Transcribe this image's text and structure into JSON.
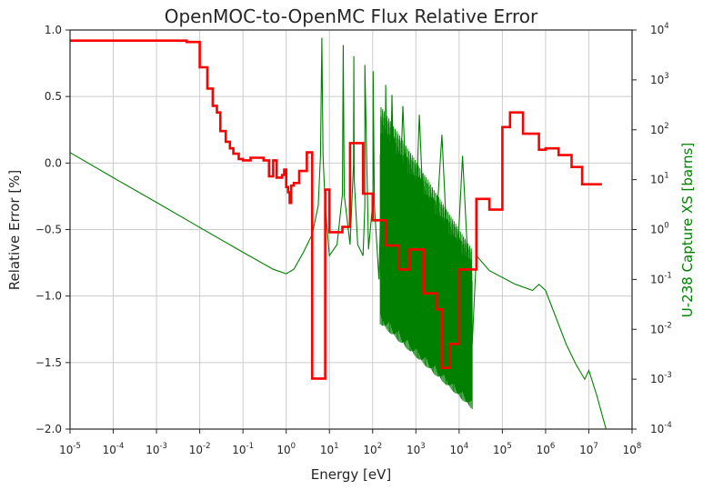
{
  "chart_data": {
    "type": "line",
    "title": "OpenMOC-to-OpenMC Flux Relative Error",
    "xlabel": "Energy [eV]",
    "ylabel": "Relative Error [%]",
    "y2label": "U-238 Capture XS [barns]",
    "x_scale": "log",
    "xlim": [
      1e-05,
      100000000.0
    ],
    "ylim": [
      -2.0,
      1.0
    ],
    "y2_scale": "log",
    "y2lim": [
      0.0001,
      10000.0
    ],
    "grid": true,
    "x_ticks": [
      {
        "base": "10",
        "exp": "-5"
      },
      {
        "base": "10",
        "exp": "-4"
      },
      {
        "base": "10",
        "exp": "-3"
      },
      {
        "base": "10",
        "exp": "-2"
      },
      {
        "base": "10",
        "exp": "-1"
      },
      {
        "base": "10",
        "exp": "0"
      },
      {
        "base": "10",
        "exp": "1"
      },
      {
        "base": "10",
        "exp": "2"
      },
      {
        "base": "10",
        "exp": "3"
      },
      {
        "base": "10",
        "exp": "4"
      },
      {
        "base": "10",
        "exp": "5"
      },
      {
        "base": "10",
        "exp": "6"
      },
      {
        "base": "10",
        "exp": "7"
      },
      {
        "base": "10",
        "exp": "8"
      }
    ],
    "y_ticks": [
      "1.0",
      "0.5",
      "0.0",
      "−0.5",
      "−1.0",
      "−1.5",
      "−2.0"
    ],
    "y2_ticks": [
      {
        "base": "10",
        "exp": "4"
      },
      {
        "base": "10",
        "exp": "3"
      },
      {
        "base": "10",
        "exp": "2"
      },
      {
        "base": "10",
        "exp": "1"
      },
      {
        "base": "10",
        "exp": "0"
      },
      {
        "base": "10",
        "exp": "-1"
      },
      {
        "base": "10",
        "exp": "-2"
      },
      {
        "base": "10",
        "exp": "-3"
      },
      {
        "base": "10",
        "exp": "-4"
      }
    ],
    "colors": {
      "error": "#ff0000",
      "xs": "#008000",
      "grid": "#cccccc",
      "axes": "#262626"
    },
    "series": [
      {
        "axis": "left",
        "step": true,
        "color": "#ff0000",
        "edges": [
          1e-05,
          0.005,
          0.01,
          0.015,
          0.02,
          0.025,
          0.03,
          0.04,
          0.05,
          0.06,
          0.08,
          0.1,
          0.15,
          0.3,
          0.4,
          0.5,
          0.6,
          0.8,
          0.9,
          1.0,
          1.1,
          1.2,
          1.3,
          1.5,
          2.0,
          3.0,
          4.0,
          4.5,
          8.0,
          10.0,
          20.0,
          30.0,
          60.0,
          100.0,
          200.0,
          400.0,
          700.0,
          1500.0,
          3000.0,
          4000.0,
          6000.0,
          10000.0,
          25000.0,
          50000.0,
          100000.0,
          150000.0,
          300000.0,
          700000.0,
          1000000.0,
          2000000.0,
          4000000.0,
          7000000.0,
          20000000.0
        ],
        "values": [
          0.92,
          0.91,
          0.72,
          0.56,
          0.43,
          0.38,
          0.24,
          0.16,
          0.11,
          0.07,
          0.03,
          0.02,
          0.04,
          0.02,
          -0.1,
          0.02,
          -0.11,
          -0.09,
          -0.05,
          -0.18,
          -0.22,
          -0.3,
          -0.17,
          -0.15,
          -0.06,
          0.08,
          -1.62,
          -1.62,
          -0.2,
          -0.52,
          -0.48,
          0.15,
          -0.23,
          -0.43,
          -0.62,
          -0.8,
          -0.65,
          -0.98,
          -1.1,
          -1.54,
          -1.36,
          -0.8,
          -0.27,
          -0.35,
          0.27,
          0.38,
          0.22,
          0.1,
          0.11,
          0.06,
          -0.03,
          -0.16
        ]
      },
      {
        "axis": "right",
        "step": false,
        "color": "#008000",
        "x": [
          1e-05,
          0.0001,
          0.001,
          0.01,
          0.1,
          0.5,
          1.0,
          1.5,
          2.5,
          4.0,
          5.5,
          6.2,
          6.67,
          7.1,
          8.0,
          10.0,
          15.0,
          20.0,
          20.87,
          22.0,
          30.0,
          36.0,
          36.68,
          37.5,
          45.0,
          60.0,
          66.0,
          66.0,
          80.0,
          102.0,
          102.6,
          110.0,
          140.0,
          165.0,
          190.0,
          200.0,
          230.0,
          280.0,
          350.0,
          500.0,
          800.0,
          1200.0,
          2000.0,
          4000.0,
          7000.0,
          12000.0,
          20000.0,
          25000.0,
          50000.0,
          200000.0,
          500000.0,
          700000.0,
          1000000.0,
          3000000.0,
          5000000.0,
          8000000.0,
          10000000.0,
          15000000.0,
          25000000.0
        ],
        "y": [
          35,
          11,
          3.5,
          1.1,
          0.35,
          0.16,
          0.13,
          0.16,
          0.35,
          0.8,
          3,
          30,
          7000,
          30,
          3,
          0.3,
          0.5,
          5,
          5000,
          5,
          0.5,
          20,
          3000,
          10,
          0.5,
          0.3,
          3,
          2000,
          0.4,
          4,
          1500,
          3,
          0.1,
          30,
          0.05,
          800,
          0.04,
          500,
          0.02,
          300,
          0.01,
          200,
          0.005,
          80,
          0.003,
          30,
          0.005,
          0.3,
          0.15,
          0.08,
          0.06,
          0.08,
          0.06,
          0.005,
          0.002,
          0.001,
          0.0015,
          0.0005,
          0.0001
        ]
      }
    ]
  }
}
